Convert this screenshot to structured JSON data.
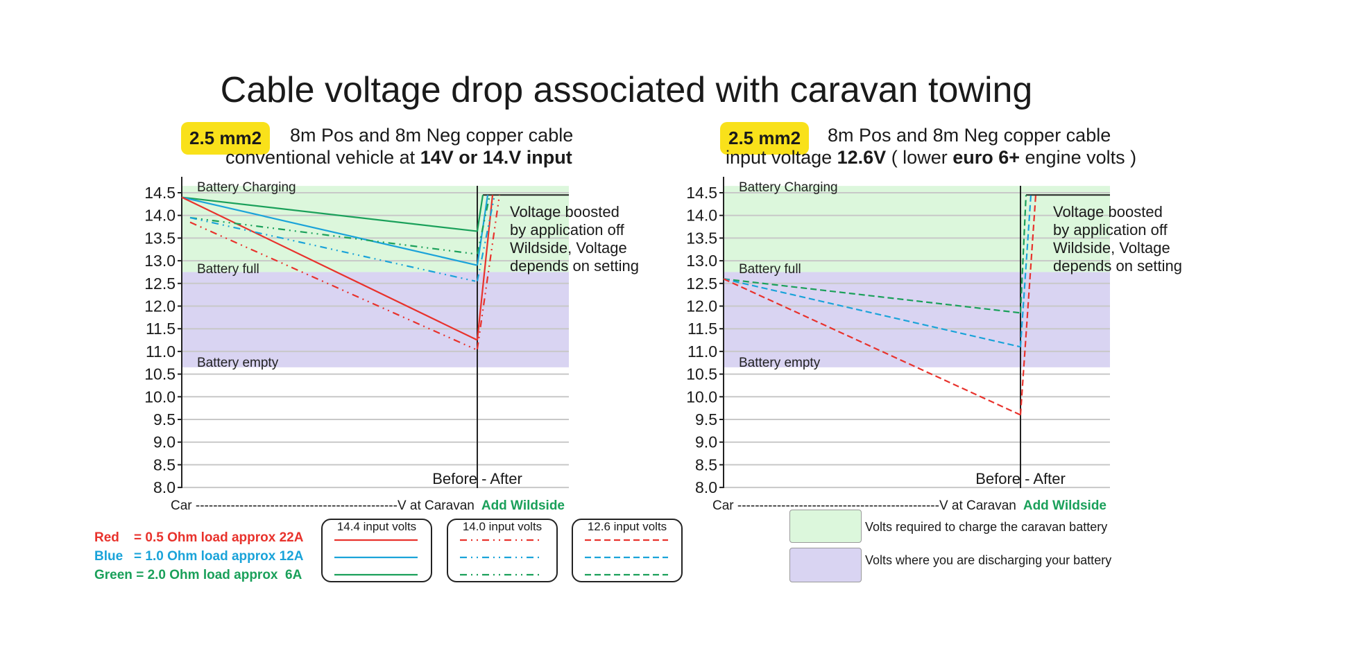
{
  "title": "Cable voltage drop associated with caravan towing",
  "colors": {
    "red": "#e8322c",
    "blue": "#1aa3d9",
    "green": "#1aa05a",
    "charging_band": "#dcf7dc",
    "discharging_band": "#d9d4f2",
    "badge": "#f9e11a"
  },
  "panels": [
    {
      "badge": "2.5 mm2",
      "line1": "8m Pos and 8m Neg copper cable",
      "line2": [
        {
          "t": "conventional vehicle at ",
          "b": false
        },
        {
          "t": "14V or 14.V input",
          "b": true
        }
      ]
    },
    {
      "badge": "2.5 mm2",
      "line1": "8m Pos and 8m Neg copper cable",
      "line2": [
        {
          "t": "input voltage ",
          "b": false
        },
        {
          "t": "12.6V",
          "b": true
        },
        {
          "t": " ( lower ",
          "b": false
        },
        {
          "t": "euro 6+",
          "b": true
        },
        {
          "t": " engine volts )",
          "b": false
        }
      ]
    }
  ],
  "chart_data": [
    {
      "type": "line",
      "ylim": [
        8.0,
        14.5
      ],
      "yticks": [
        "14.5",
        "14.0",
        "13.5",
        "13.0",
        "12.5",
        "12.0",
        "11.5",
        "11.0",
        "10.5",
        "10.0",
        "9.5",
        "9.0",
        "8.5",
        "8.0"
      ],
      "grid": true,
      "x": [
        "Car",
        "V at Caravan",
        "Add Wildside"
      ],
      "xlabel": {
        "car": "Car ----------------------------------------------V at Caravan",
        "wildside": "Add Wildside"
      },
      "divider_label": "Before - After",
      "bands": [
        {
          "label": "Battery Charging",
          "from": 12.75,
          "to": 14.65,
          "kind": "charging"
        },
        {
          "label": "Battery full",
          "kind": "charging"
        },
        {
          "label": "Battery empty",
          "from": 10.65,
          "to": 12.75,
          "kind": "discharging"
        }
      ],
      "annotation": [
        "Voltage boosted",
        "by application off",
        "Wildside, Voltage",
        "depends on setting"
      ],
      "boost_level": 14.45,
      "series": [
        {
          "color": "green",
          "input": "14.4 input volts",
          "values": [
            14.4,
            13.65,
            14.45
          ]
        },
        {
          "color": "blue",
          "input": "14.4 input volts",
          "values": [
            14.4,
            12.9,
            14.45
          ]
        },
        {
          "color": "red",
          "input": "14.4 input volts",
          "values": [
            14.4,
            11.25,
            14.45
          ]
        },
        {
          "color": "green",
          "input": "14.0 input volts",
          "values": [
            13.95,
            13.15,
            14.45
          ]
        },
        {
          "color": "blue",
          "input": "14.0 input volts",
          "values": [
            13.95,
            12.55,
            14.45
          ]
        },
        {
          "color": "red",
          "input": "14.0 input volts",
          "values": [
            13.85,
            11.05,
            14.45
          ]
        }
      ]
    },
    {
      "type": "line",
      "ylim": [
        8.0,
        14.5
      ],
      "yticks": [
        "14.5",
        "14.0",
        "13.5",
        "13.0",
        "12.5",
        "12.0",
        "11.5",
        "11.0",
        "10.5",
        "10.0",
        "9.5",
        "9.0",
        "8.5",
        "8.0"
      ],
      "grid": true,
      "x": [
        "Car",
        "V at Caravan",
        "Add Wildside"
      ],
      "xlabel": {
        "car": "Car ----------------------------------------------V at Caravan",
        "wildside": "Add Wildside"
      },
      "divider_label": "Before - After",
      "bands": [
        {
          "label": "Battery Charging",
          "from": 12.75,
          "to": 14.65,
          "kind": "charging"
        },
        {
          "label": "Battery full",
          "kind": "charging"
        },
        {
          "label": "Battery empty",
          "from": 10.65,
          "to": 12.75,
          "kind": "discharging"
        }
      ],
      "annotation": [
        "Voltage boosted",
        "by application off",
        "Wildside, Voltage",
        "depends on setting"
      ],
      "boost_level": 14.45,
      "series": [
        {
          "color": "green",
          "input": "12.6 input volts",
          "values": [
            12.6,
            11.85,
            14.45
          ]
        },
        {
          "color": "blue",
          "input": "12.6 input volts",
          "values": [
            12.6,
            11.1,
            14.45
          ]
        },
        {
          "color": "red",
          "input": "12.6 input volts",
          "values": [
            12.6,
            9.6,
            14.45
          ]
        }
      ]
    }
  ],
  "legend": {
    "loads": [
      {
        "color": "red",
        "text": "Red    = 0.5 Ohm load approx 22A"
      },
      {
        "color": "blue",
        "text": "Blue   = 1.0 Ohm load approx 12A"
      },
      {
        "color": "green",
        "text": "Green = 2.0 Ohm load approx  6A"
      }
    ],
    "inputs": [
      {
        "label": "14.4 input volts",
        "style": "solid"
      },
      {
        "label": "14.0 input volts",
        "style": "dash-dot-dot"
      },
      {
        "label": "12.6 input volts",
        "style": "dashed"
      }
    ],
    "bands": [
      {
        "kind": "charging",
        "text": "Volts required to charge the caravan battery"
      },
      {
        "kind": "discharging",
        "text": "Volts where you are discharging your battery"
      }
    ]
  }
}
